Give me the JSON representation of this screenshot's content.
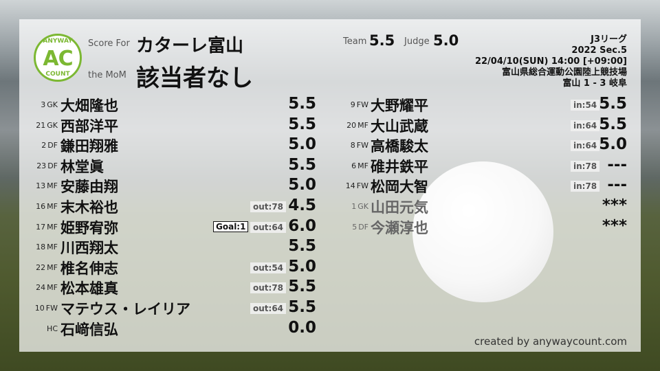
{
  "header": {
    "logo_top": "ANYWAY",
    "logo_mid": "AC",
    "logo_bottom": "COUNT",
    "score_for_label": "Score For",
    "team_name": "カターレ富山",
    "mom_label": "the MoM",
    "mom_value": "該当者なし",
    "team_label": "Team",
    "team_score": "5.5",
    "judge_label": "Judge",
    "judge_score": "5.0"
  },
  "match": {
    "league": "J3リーグ",
    "season": "2022 Sec.5",
    "datetime": "22/04/10(SUN) 14:00 [+09:00]",
    "venue": "富山県総合運動公園陸上競技場",
    "result": "富山 1 - 3 岐阜"
  },
  "starters": [
    {
      "num": "3",
      "pos": "GK",
      "name": "大畑隆也",
      "score": "5.5"
    },
    {
      "num": "21",
      "pos": "GK",
      "name": "西部洋平",
      "score": "5.5"
    },
    {
      "num": "2",
      "pos": "DF",
      "name": "鎌田翔雅",
      "score": "5.0"
    },
    {
      "num": "23",
      "pos": "DF",
      "name": "林堂眞",
      "score": "5.5"
    },
    {
      "num": "13",
      "pos": "MF",
      "name": "安藤由翔",
      "score": "5.0"
    },
    {
      "num": "16",
      "pos": "MF",
      "name": "末木裕也",
      "score": "4.5",
      "out": "out:78"
    },
    {
      "num": "17",
      "pos": "MF",
      "name": "姫野宥弥",
      "score": "6.0",
      "out": "out:64",
      "goal": "Goal:1"
    },
    {
      "num": "18",
      "pos": "MF",
      "name": "川西翔太",
      "score": "5.5"
    },
    {
      "num": "22",
      "pos": "MF",
      "name": "椎名伸志",
      "score": "5.0",
      "out": "out:54"
    },
    {
      "num": "24",
      "pos": "MF",
      "name": "松本雄真",
      "score": "5.5",
      "out": "out:78"
    },
    {
      "num": "10",
      "pos": "FW",
      "name": "マテウス・レイリア",
      "score": "5.5",
      "out": "out:64"
    },
    {
      "num": "",
      "pos": "HC",
      "name": "石﨑信弘",
      "score": "0.0"
    }
  ],
  "subs": [
    {
      "num": "9",
      "pos": "FW",
      "name": "大野耀平",
      "score": "5.5",
      "in": "in:54"
    },
    {
      "num": "20",
      "pos": "MF",
      "name": "大山武蔵",
      "score": "5.5",
      "in": "in:64"
    },
    {
      "num": "8",
      "pos": "FW",
      "name": "高橋駿太",
      "score": "5.0",
      "in": "in:64"
    },
    {
      "num": "6",
      "pos": "MF",
      "name": "碓井鉄平",
      "score": "---",
      "in": "in:78"
    },
    {
      "num": "14",
      "pos": "FW",
      "name": "松岡大智",
      "score": "---",
      "in": "in:78"
    },
    {
      "num": "1",
      "pos": "GK",
      "name": "山田元気",
      "score": "***",
      "unused": true
    },
    {
      "num": "5",
      "pos": "DF",
      "name": "今瀬淳也",
      "score": "***",
      "unused": true
    }
  ],
  "footer": {
    "credit": "created by anywaycount.com"
  }
}
